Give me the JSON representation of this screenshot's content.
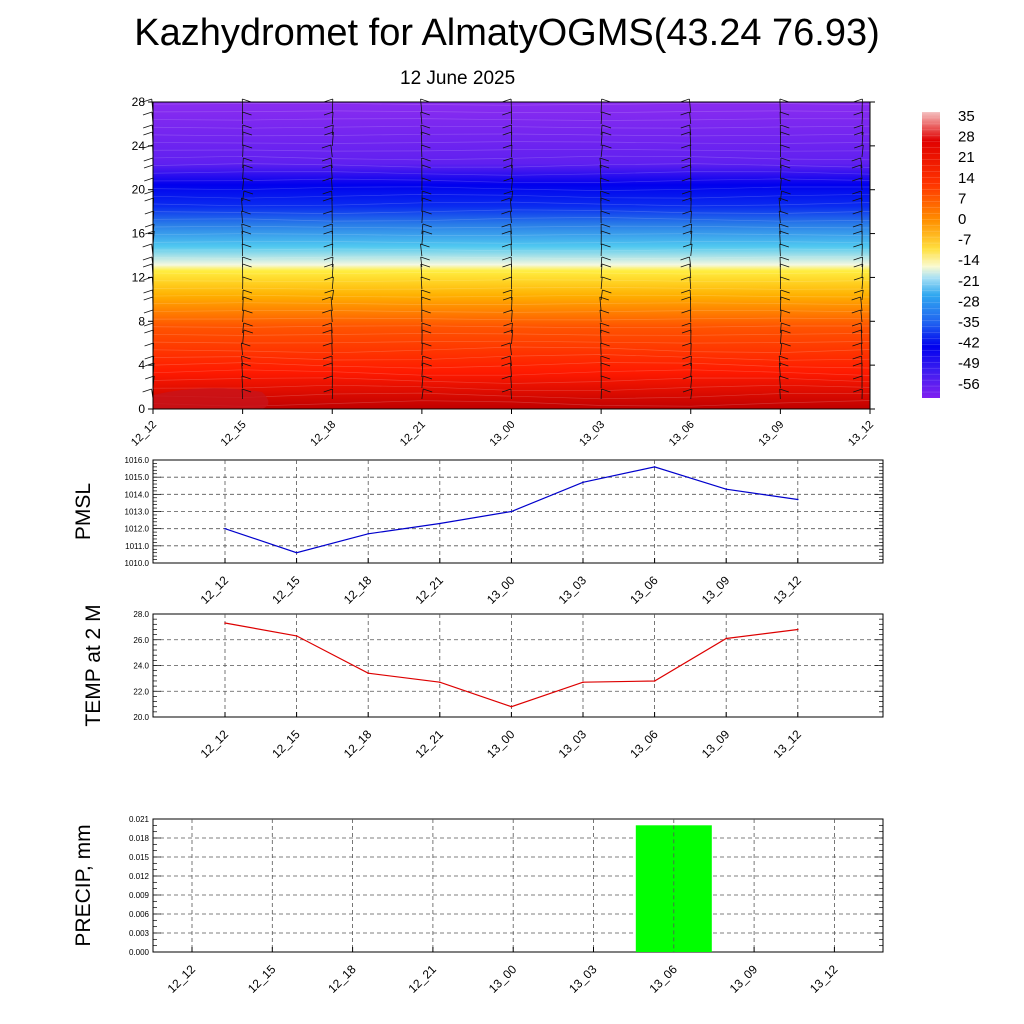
{
  "title": "Kazhydromet for AlmatyOGMS(43.24 76.93)",
  "subtitle": "12 June 2025",
  "colors": {
    "pmsl_line": "#0000cc",
    "temp_line": "#dd0000",
    "precip_bar": "#00ff00",
    "grid": "#555555"
  },
  "chart_data": [
    {
      "type": "heatmap",
      "description_key": "temperature-height",
      "x": [
        "12_12",
        "12_15",
        "12_18",
        "12_21",
        "13_00",
        "13_03",
        "13_06",
        "13_09",
        "13_12"
      ],
      "y_ticks": [
        "0",
        "4",
        "8",
        "12",
        "16",
        "20",
        "24",
        "28"
      ],
      "ylim": [
        0,
        28
      ],
      "colorbar": {
        "labels": [
          "35",
          "28",
          "21",
          "14",
          "7",
          "0",
          "-7",
          "-14",
          "-21",
          "-28",
          "-35",
          "-42",
          "-49",
          "-56"
        ],
        "range": [
          -60,
          38
        ]
      },
      "wind_barbs": true
    },
    {
      "type": "line",
      "ylabel": "PMSL",
      "x": [
        "12_12",
        "12_15",
        "12_18",
        "12_21",
        "13_00",
        "13_03",
        "13_06",
        "13_09",
        "13_12"
      ],
      "y_ticks": [
        "1016.0",
        "1015.0",
        "1014.0",
        "1013.0",
        "1012.0",
        "1011.0",
        "1010.0"
      ],
      "ylim": [
        1010,
        1016
      ],
      "values": [
        1012.0,
        1010.6,
        1011.7,
        1012.3,
        1013.0,
        1014.7,
        1015.6,
        1014.3,
        1013.7
      ],
      "grid": true
    },
    {
      "type": "line",
      "ylabel": "TEMP at 2 M",
      "x": [
        "12_12",
        "12_15",
        "12_18",
        "12_21",
        "13_00",
        "13_03",
        "13_06",
        "13_09",
        "13_12"
      ],
      "y_ticks": [
        "28.0",
        "26.0",
        "24.0",
        "22.0",
        "20.0"
      ],
      "ylim": [
        20,
        28
      ],
      "values": [
        27.3,
        26.3,
        23.4,
        22.7,
        20.8,
        22.7,
        22.8,
        26.1,
        26.8
      ],
      "grid": true
    },
    {
      "type": "bar",
      "ylabel": "PRECIP, mm",
      "x": [
        "12_12",
        "12_15",
        "12_18",
        "12_21",
        "13_00",
        "13_03",
        "13_06",
        "13_09",
        "13_12"
      ],
      "y_ticks": [
        "0.021",
        "0.018",
        "0.015",
        "0.012",
        "0.009",
        "0.006",
        "0.003",
        "0.000"
      ],
      "ylim": [
        0,
        0.021
      ],
      "values": [
        0,
        0,
        0,
        0,
        0,
        0,
        0.02,
        0,
        0
      ],
      "grid": true
    }
  ]
}
